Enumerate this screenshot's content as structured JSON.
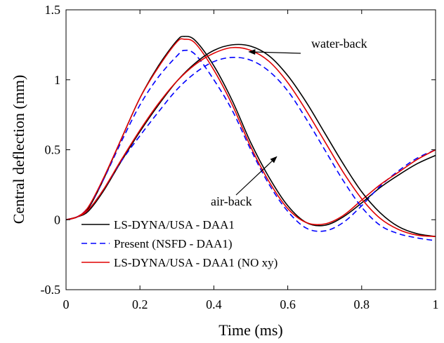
{
  "chart_data": {
    "type": "line",
    "xlabel": "Time (ms)",
    "ylabel": "Central deflection (mm)",
    "xlim": [
      0,
      1
    ],
    "ylim": [
      -0.5,
      1.5
    ],
    "xticks": [
      0,
      0.2,
      0.4,
      0.6,
      0.8,
      1
    ],
    "yticks": [
      -0.5,
      0,
      0.5,
      1,
      1.5
    ],
    "xtick_labels": [
      "0",
      "0.2",
      "0.4",
      "0.6",
      "0.8",
      "1"
    ],
    "ytick_labels": [
      "-0.5",
      "0",
      "0.5",
      "1",
      "1.5"
    ],
    "grid": false,
    "legend_position": "bottom-left",
    "series": [
      {
        "name": "LS-DYNA/USA - DAA1",
        "case": "air-back",
        "color": "#000000",
        "dash": "solid",
        "points": [
          [
            0,
            0
          ],
          [
            0.03,
            0.02
          ],
          [
            0.06,
            0.08
          ],
          [
            0.1,
            0.28
          ],
          [
            0.15,
            0.58
          ],
          [
            0.2,
            0.87
          ],
          [
            0.25,
            1.1
          ],
          [
            0.3,
            1.28
          ],
          [
            0.32,
            1.31
          ],
          [
            0.35,
            1.28
          ],
          [
            0.4,
            1.1
          ],
          [
            0.45,
            0.85
          ],
          [
            0.5,
            0.55
          ],
          [
            0.55,
            0.3
          ],
          [
            0.6,
            0.1
          ],
          [
            0.65,
            -0.02
          ],
          [
            0.7,
            -0.04
          ],
          [
            0.75,
            0.02
          ],
          [
            0.8,
            0.12
          ],
          [
            0.85,
            0.23
          ],
          [
            0.9,
            0.32
          ],
          [
            0.95,
            0.4
          ],
          [
            1.0,
            0.46
          ]
        ]
      },
      {
        "name": "Present (NSFD - DAA1)",
        "case": "air-back",
        "color": "#0000ff",
        "dash": "dashed",
        "points": [
          [
            0,
            0
          ],
          [
            0.03,
            0.02
          ],
          [
            0.06,
            0.09
          ],
          [
            0.1,
            0.28
          ],
          [
            0.15,
            0.56
          ],
          [
            0.2,
            0.82
          ],
          [
            0.25,
            1.02
          ],
          [
            0.3,
            1.17
          ],
          [
            0.32,
            1.21
          ],
          [
            0.35,
            1.18
          ],
          [
            0.4,
            1.0
          ],
          [
            0.45,
            0.78
          ],
          [
            0.5,
            0.5
          ],
          [
            0.55,
            0.25
          ],
          [
            0.6,
            0.06
          ],
          [
            0.65,
            -0.06
          ],
          [
            0.7,
            -0.08
          ],
          [
            0.75,
            -0.02
          ],
          [
            0.8,
            0.1
          ],
          [
            0.85,
            0.24
          ],
          [
            0.9,
            0.35
          ],
          [
            0.95,
            0.44
          ],
          [
            1.0,
            0.5
          ]
        ]
      },
      {
        "name": "LS-DYNA/USA - DAA1 (NO xy)",
        "case": "air-back",
        "color": "#e00000",
        "dash": "solid",
        "points": [
          [
            0,
            0
          ],
          [
            0.03,
            0.02
          ],
          [
            0.06,
            0.09
          ],
          [
            0.1,
            0.29
          ],
          [
            0.15,
            0.58
          ],
          [
            0.2,
            0.87
          ],
          [
            0.25,
            1.09
          ],
          [
            0.3,
            1.27
          ],
          [
            0.32,
            1.29
          ],
          [
            0.35,
            1.26
          ],
          [
            0.4,
            1.07
          ],
          [
            0.45,
            0.82
          ],
          [
            0.5,
            0.52
          ],
          [
            0.55,
            0.27
          ],
          [
            0.6,
            0.08
          ],
          [
            0.65,
            -0.02
          ],
          [
            0.7,
            -0.03
          ],
          [
            0.75,
            0.03
          ],
          [
            0.8,
            0.14
          ],
          [
            0.85,
            0.25
          ],
          [
            0.9,
            0.34
          ],
          [
            0.95,
            0.43
          ],
          [
            1.0,
            0.5
          ]
        ]
      },
      {
        "name": "LS-DYNA/USA - DAA1",
        "case": "water-back",
        "color": "#000000",
        "dash": "solid",
        "points": [
          [
            0,
            0
          ],
          [
            0.03,
            0.02
          ],
          [
            0.06,
            0.06
          ],
          [
            0.1,
            0.2
          ],
          [
            0.15,
            0.42
          ],
          [
            0.2,
            0.63
          ],
          [
            0.25,
            0.82
          ],
          [
            0.3,
            0.99
          ],
          [
            0.35,
            1.12
          ],
          [
            0.4,
            1.21
          ],
          [
            0.45,
            1.25
          ],
          [
            0.5,
            1.24
          ],
          [
            0.55,
            1.17
          ],
          [
            0.6,
            1.03
          ],
          [
            0.65,
            0.84
          ],
          [
            0.7,
            0.62
          ],
          [
            0.75,
            0.4
          ],
          [
            0.8,
            0.2
          ],
          [
            0.85,
            0.05
          ],
          [
            0.9,
            -0.05
          ],
          [
            0.95,
            -0.1
          ],
          [
            1.0,
            -0.12
          ]
        ]
      },
      {
        "name": "Present (NSFD - DAA1)",
        "case": "water-back",
        "color": "#0000ff",
        "dash": "dashed",
        "points": [
          [
            0,
            0
          ],
          [
            0.03,
            0.02
          ],
          [
            0.06,
            0.07
          ],
          [
            0.1,
            0.21
          ],
          [
            0.15,
            0.42
          ],
          [
            0.2,
            0.6
          ],
          [
            0.25,
            0.77
          ],
          [
            0.3,
            0.93
          ],
          [
            0.35,
            1.05
          ],
          [
            0.4,
            1.13
          ],
          [
            0.45,
            1.16
          ],
          [
            0.5,
            1.14
          ],
          [
            0.55,
            1.06
          ],
          [
            0.6,
            0.92
          ],
          [
            0.65,
            0.72
          ],
          [
            0.7,
            0.5
          ],
          [
            0.75,
            0.28
          ],
          [
            0.8,
            0.09
          ],
          [
            0.85,
            -0.04
          ],
          [
            0.9,
            -0.1
          ],
          [
            0.95,
            -0.13
          ],
          [
            1.0,
            -0.15
          ]
        ]
      },
      {
        "name": "LS-DYNA/USA - DAA1 (NO xy)",
        "case": "water-back",
        "color": "#e00000",
        "dash": "solid",
        "points": [
          [
            0,
            0
          ],
          [
            0.03,
            0.02
          ],
          [
            0.06,
            0.07
          ],
          [
            0.1,
            0.21
          ],
          [
            0.15,
            0.43
          ],
          [
            0.2,
            0.64
          ],
          [
            0.25,
            0.83
          ],
          [
            0.3,
            0.99
          ],
          [
            0.35,
            1.11
          ],
          [
            0.4,
            1.19
          ],
          [
            0.45,
            1.23
          ],
          [
            0.5,
            1.21
          ],
          [
            0.55,
            1.13
          ],
          [
            0.6,
            0.98
          ],
          [
            0.65,
            0.78
          ],
          [
            0.7,
            0.56
          ],
          [
            0.75,
            0.34
          ],
          [
            0.8,
            0.15
          ],
          [
            0.85,
            0.01
          ],
          [
            0.9,
            -0.07
          ],
          [
            0.95,
            -0.11
          ],
          [
            1.0,
            -0.12
          ]
        ]
      }
    ],
    "annotations": [
      {
        "text": "water-back",
        "arrow_to": [
          0.495,
          1.2
        ]
      },
      {
        "text": "air-back",
        "arrow_to": [
          0.57,
          0.45
        ]
      }
    ]
  }
}
